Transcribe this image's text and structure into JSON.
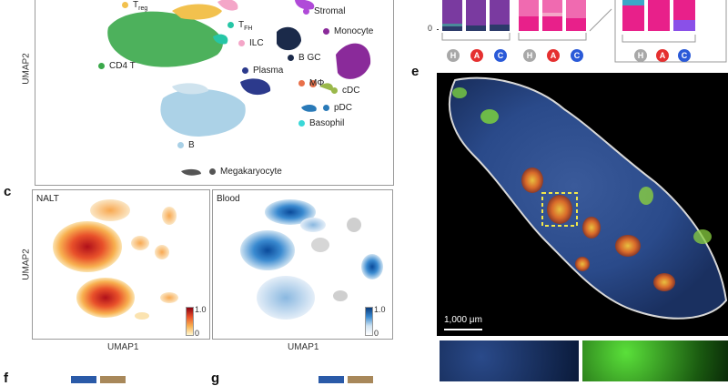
{
  "panel_letters": {
    "c": "c",
    "e": "e",
    "f": "f",
    "g": "g"
  },
  "panel_a": {
    "ylabel": "UMAP2",
    "legend": [
      {
        "label": "T",
        "sub": "reg",
        "color": "#f2c14e"
      },
      {
        "label": "T",
        "sub": "FH",
        "color": "#26c6a6"
      },
      {
        "label": "ILC",
        "sub": "",
        "color": "#f4a6c8"
      },
      {
        "label": "CD4 T",
        "sub": "",
        "color": "#3aa84a"
      },
      {
        "label": "Stromal",
        "sub": "",
        "color": "#b04ad8"
      },
      {
        "label": "Monocyte",
        "sub": "",
        "color": "#8a2a9a"
      },
      {
        "label": "B GC",
        "sub": "",
        "color": "#1b2a4a"
      },
      {
        "label": "Plasma",
        "sub": "",
        "color": "#2c3a8c"
      },
      {
        "label": "MΦ",
        "sub": "",
        "color": "#e8704a"
      },
      {
        "label": "cDC",
        "sub": "",
        "color": "#9ab84a"
      },
      {
        "label": "pDC",
        "sub": "",
        "color": "#2a7ab8"
      },
      {
        "label": "Basophil",
        "sub": "",
        "color": "#3ad8d8"
      },
      {
        "label": "B",
        "sub": "",
        "color": "#a8d0e6"
      },
      {
        "label": "Megakaryocyte",
        "sub": "",
        "color": "#555555"
      }
    ]
  },
  "panel_b": {
    "zero_tick": "0",
    "groups": [
      {
        "letters": [
          "H",
          "A",
          "C"
        ]
      },
      {
        "letters": [
          "H",
          "A",
          "C"
        ]
      },
      {
        "letters": [
          "H",
          "A",
          "C"
        ]
      }
    ],
    "circle_colors": {
      "H": "#a8a8a8",
      "A": "#e53030",
      "C": "#2a5ad8"
    }
  },
  "panel_c": {
    "ylabel": "UMAP2",
    "left": {
      "title": "NALT",
      "xlabel": "UMAP1",
      "scale_max": "1.0",
      "scale_min": "0"
    },
    "right": {
      "title": "Blood",
      "xlabel": "UMAP1",
      "scale_max": "1.0",
      "scale_min": "0"
    }
  },
  "panel_e": {
    "scalebar": "1,000 μm"
  }
}
